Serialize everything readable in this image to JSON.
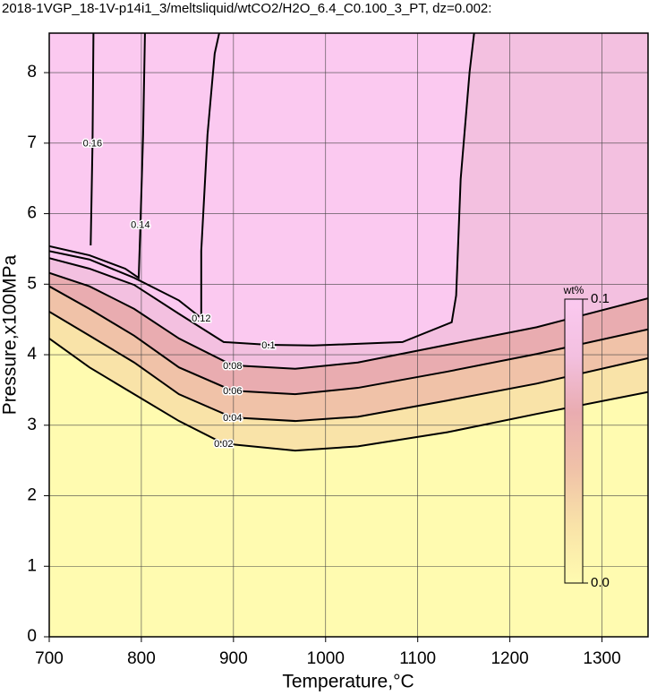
{
  "chart_data": {
    "type": "contour",
    "title": "2018-1VGP_18-1V-p14i1_3/meltsliquid/wtCO2/H2O_6.4_C0.100_3_PT, dz=0.002:",
    "x_label": "Temperature,°C",
    "y_label": "Pressure,x100MPa",
    "xlim": [
      700,
      1350
    ],
    "ylim": [
      0,
      8.56
    ],
    "xticks": [
      700,
      800,
      900,
      1000,
      1100,
      1200,
      1300
    ],
    "yticks": [
      0,
      1,
      2,
      3,
      4,
      5,
      6,
      7,
      8
    ],
    "grid": true,
    "colormap": [
      {
        "value": 0,
        "color": "#fffbb0"
      },
      {
        "value": 0.02,
        "color": "#f9e3a8"
      },
      {
        "value": 0.04,
        "color": "#f0c2a8"
      },
      {
        "value": 0.06,
        "color": "#e9acb0"
      },
      {
        "value": 0.08,
        "color": "#f3c0e0"
      },
      {
        "value": 0.1,
        "color": "#fbc9f0"
      }
    ],
    "colorbar": {
      "label": "wt%",
      "ticks": [
        {
          "value": 0,
          "label": "0.0"
        },
        0.1
      ]
    },
    "contours": [
      {
        "level": 0.02,
        "x": [
          700,
          743.7,
          792.2,
          840.8,
          889.3,
          967,
          1035,
          1132,
          1229,
          1350
        ],
        "y": [
          4.23,
          3.82,
          3.44,
          3.06,
          2.74,
          2.64,
          2.7,
          2.9,
          3.16,
          3.47
        ]
      },
      {
        "level": 0.04,
        "x": [
          700,
          743.7,
          792.2,
          840.8,
          899,
          967,
          1035,
          1132,
          1229,
          1350
        ],
        "y": [
          4.61,
          4.27,
          3.89,
          3.44,
          3.11,
          3.06,
          3.12,
          3.35,
          3.59,
          3.95
        ]
      },
      {
        "level": 0.06,
        "x": [
          700,
          743.7,
          792.2,
          840.8,
          899,
          967,
          1035,
          1132,
          1229,
          1350
        ],
        "y": [
          4.97,
          4.65,
          4.27,
          3.82,
          3.49,
          3.44,
          3.53,
          3.76,
          4.01,
          4.36
        ]
      },
      {
        "level": 0.08,
        "x": [
          700,
          743.7,
          792.2,
          840.8,
          899,
          967,
          1035,
          1132,
          1229,
          1350
        ],
        "y": [
          5.16,
          4.97,
          4.65,
          4.23,
          3.85,
          3.8,
          3.89,
          4.14,
          4.39,
          4.8
        ]
      },
      {
        "level": 0.1,
        "x": [
          700,
          743.7,
          792.2,
          840.8,
          889.3,
          938,
          986.4,
          1083.5,
          1136.9,
          1141.7,
          1146.6,
          1156.3,
          1161.2
        ],
        "y": [
          5.37,
          5.22,
          4.99,
          4.58,
          4.18,
          4.14,
          4.13,
          4.18,
          4.46,
          4.84,
          6.49,
          8.01,
          8.56
        ]
      },
      {
        "level": 0.12,
        "x": [
          700,
          743.7,
          792.2,
          840.8,
          865,
          865,
          871.8,
          879.6,
          884.5
        ],
        "y": [
          5.47,
          5.35,
          5.09,
          4.77,
          4.52,
          5.47,
          7.12,
          8.27,
          8.56
        ]
      },
      {
        "level": 0.14,
        "x": [
          700,
          743.7,
          782.5,
          797.1,
          799,
          801.9,
          803.9
        ],
        "y": [
          5.54,
          5.41,
          5.22,
          5.09,
          5.85,
          7.12,
          8.56
        ]
      },
      {
        "level": 0.16,
        "x": [
          745,
          747,
          748
        ],
        "y": [
          5.55,
          7,
          8.56
        ]
      }
    ]
  }
}
